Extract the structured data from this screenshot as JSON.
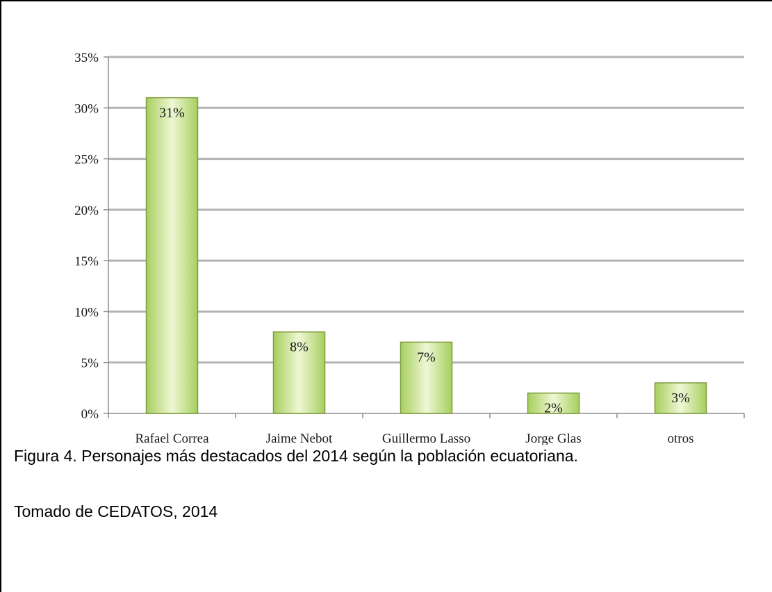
{
  "chart_data": {
    "type": "bar",
    "categories": [
      "Rafael Correa",
      "Jaime Nebot",
      "Guillermo Lasso",
      "Jorge Glas",
      "otros"
    ],
    "values": [
      31,
      8,
      7,
      2,
      3
    ],
    "data_labels": [
      "31%",
      "8%",
      "7%",
      "2%",
      "3%"
    ],
    "yticks": [
      0,
      5,
      10,
      15,
      20,
      25,
      30,
      35
    ],
    "ytick_labels": [
      "0%",
      "5%",
      "10%",
      "15%",
      "20%",
      "25%",
      "30%",
      "35%"
    ],
    "ylim": [
      0,
      35
    ],
    "grid": true,
    "legend": "none",
    "bar_color": "#a7cf5e",
    "bar_color_light": "#eef7d4",
    "bar_edge_color": "#7e9c3d",
    "grid_color": "#b3b3b3"
  },
  "caption": {
    "figure": "Figura 4. Personajes más destacados del 2014 según la población ecuatoriana.",
    "source": "Tomado de CEDATOS, 2014"
  }
}
